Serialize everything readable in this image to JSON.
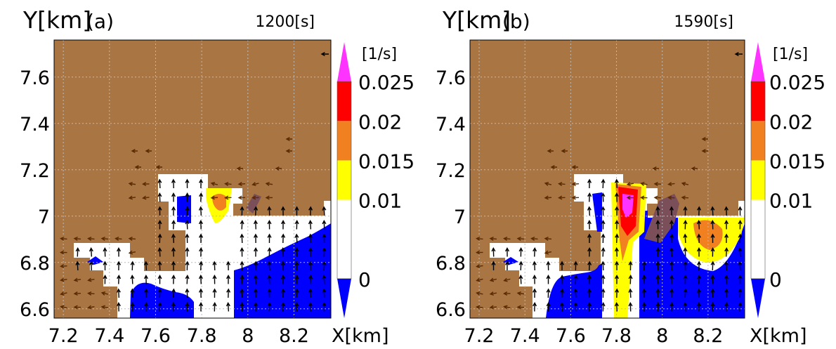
{
  "colors": {
    "terrain": "#a97543",
    "white": "#ffffff",
    "blue": "#0000ff",
    "yellow": "#ffff00",
    "orange": "#f08020",
    "red": "#ff0000",
    "magenta": "#ff33ff",
    "purple": "#7a4f5a",
    "arrow_dark": "#000000",
    "arrow_brown": "#5a2a00",
    "grid": "#bbbbbb"
  },
  "chart_data": [
    {
      "type": "heatmap",
      "panel": "(a)",
      "time_label": "1200[s]",
      "ylabel": "Y[km]",
      "xlabel": "X[km]",
      "xlim": [
        7.16,
        8.36
      ],
      "ylim": [
        6.56,
        7.76
      ],
      "xticks": [
        "7.2",
        "7.4",
        "7.6",
        "7.8",
        "8",
        "8.2"
      ],
      "yticks": [
        "7.6",
        "7.4",
        "7.2",
        "7",
        "6.8",
        "6.6"
      ],
      "grid": true,
      "colorbar": {
        "unit": "[1/s]",
        "levels": [
          "0.025",
          "0.02",
          "0.015",
          "0.01",
          "0"
        ],
        "bands": [
          {
            "from": -0.005,
            "to": 0,
            "color": "blue"
          },
          {
            "from": 0,
            "to": 0.01,
            "color": "white"
          },
          {
            "from": 0.01,
            "to": 0.015,
            "color": "yellow"
          },
          {
            "from": 0.015,
            "to": 0.02,
            "color": "orange"
          },
          {
            "from": 0.02,
            "to": 0.025,
            "color": "red"
          },
          {
            "from": 0.025,
            "to": 0.03,
            "color": "magenta"
          }
        ]
      },
      "hotspots": [
        {
          "x": 7.89,
          "y": 7.06,
          "max_value": 0.017
        },
        {
          "x": 7.34,
          "y": 6.83,
          "max_value": -0.003
        }
      ]
    },
    {
      "type": "heatmap",
      "panel": "(b)",
      "time_label": "1590[s]",
      "ylabel": "Y[km]",
      "xlabel": "X[km]",
      "xlim": [
        7.16,
        8.36
      ],
      "ylim": [
        6.56,
        7.76
      ],
      "xticks": [
        "7.2",
        "7.4",
        "7.6",
        "7.8",
        "8",
        "8.2"
      ],
      "yticks": [
        "7.6",
        "7.4",
        "7.2",
        "7",
        "6.8",
        "6.6"
      ],
      "grid": true,
      "colorbar": {
        "unit": "[1/s]",
        "levels": [
          "0.025",
          "0.02",
          "0.015",
          "0.01",
          "0"
        ],
        "bands": [
          {
            "from": -0.005,
            "to": 0,
            "color": "blue"
          },
          {
            "from": 0,
            "to": 0.01,
            "color": "white"
          },
          {
            "from": 0.01,
            "to": 0.015,
            "color": "yellow"
          },
          {
            "from": 0.015,
            "to": 0.02,
            "color": "orange"
          },
          {
            "from": 0.02,
            "to": 0.025,
            "color": "red"
          },
          {
            "from": 0.025,
            "to": 0.03,
            "color": "magenta"
          }
        ]
      },
      "hotspots": [
        {
          "x": 7.86,
          "y": 7.06,
          "max_value": 0.027
        },
        {
          "x": 8.19,
          "y": 6.93,
          "max_value": 0.017
        }
      ]
    }
  ]
}
